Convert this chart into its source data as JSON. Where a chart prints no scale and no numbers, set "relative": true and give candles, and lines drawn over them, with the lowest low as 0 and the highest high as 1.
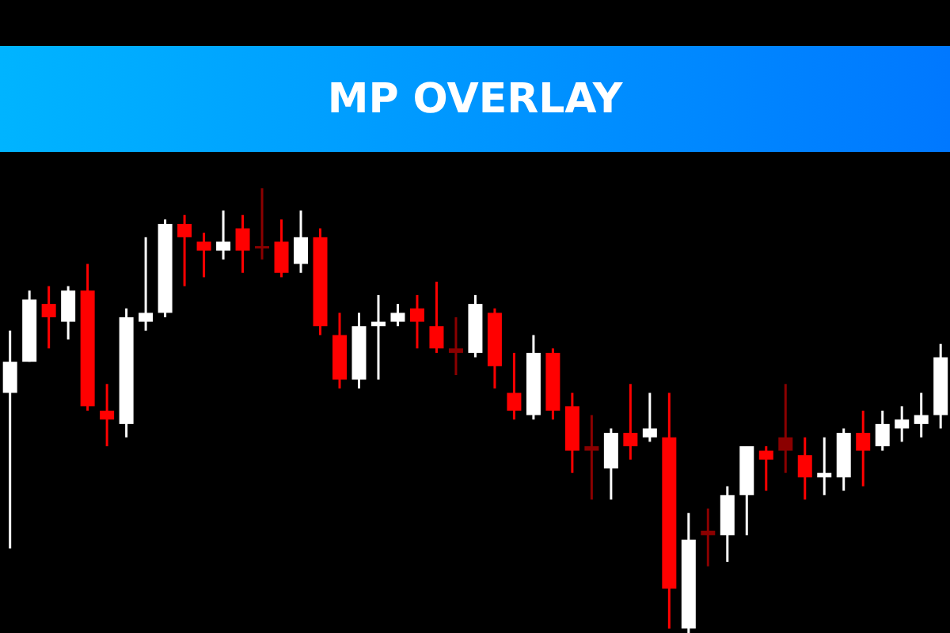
{
  "chart_data": {
    "type": "candlestick",
    "title": "MP OVERLAY",
    "relative": true,
    "categories": [
      null,
      null,
      null,
      null,
      null,
      null,
      null,
      null,
      null,
      null,
      null,
      null,
      null,
      null,
      null,
      null,
      null,
      null,
      null,
      null,
      null,
      null,
      null,
      null,
      null,
      null,
      null,
      null,
      null,
      null,
      null,
      null,
      null,
      null,
      null,
      null,
      null,
      null,
      null,
      null,
      null,
      null,
      null,
      null,
      null,
      null,
      null,
      null,
      null
    ],
    "ohlc": [
      [
        0.54,
        0.68,
        0.19,
        0.61
      ],
      [
        0.61,
        0.77,
        0.61,
        0.75
      ],
      [
        0.74,
        0.78,
        0.64,
        0.71
      ],
      [
        0.7,
        0.78,
        0.66,
        0.77
      ],
      [
        0.77,
        0.83,
        0.5,
        0.51
      ],
      [
        0.5,
        0.56,
        0.42,
        0.48
      ],
      [
        0.47,
        0.73,
        0.44,
        0.71
      ],
      [
        0.7,
        0.89,
        0.68,
        0.72
      ],
      [
        0.72,
        0.93,
        0.71,
        0.92
      ],
      [
        0.92,
        0.94,
        0.78,
        0.89
      ],
      [
        0.88,
        0.9,
        0.8,
        0.86
      ],
      [
        0.86,
        0.95,
        0.84,
        0.88
      ],
      [
        0.91,
        0.94,
        0.81,
        0.86
      ],
      [
        0.87,
        1.0,
        0.84,
        0.865
      ],
      [
        0.88,
        0.93,
        0.8,
        0.81
      ],
      [
        0.83,
        0.95,
        0.81,
        0.89
      ],
      [
        0.89,
        0.91,
        0.67,
        0.69
      ],
      [
        0.67,
        0.72,
        0.55,
        0.57
      ],
      [
        0.57,
        0.72,
        0.55,
        0.69
      ],
      [
        0.69,
        0.76,
        0.57,
        0.7
      ],
      [
        0.7,
        0.74,
        0.69,
        0.72
      ],
      [
        0.73,
        0.76,
        0.64,
        0.7
      ],
      [
        0.69,
        0.79,
        0.63,
        0.64
      ],
      [
        0.64,
        0.71,
        0.58,
        0.63
      ],
      [
        0.63,
        0.76,
        0.62,
        0.74
      ],
      [
        0.72,
        0.73,
        0.55,
        0.6
      ],
      [
        0.54,
        0.63,
        0.48,
        0.5
      ],
      [
        0.49,
        0.67,
        0.48,
        0.63
      ],
      [
        0.63,
        0.64,
        0.48,
        0.5
      ],
      [
        0.51,
        0.54,
        0.36,
        0.41
      ],
      [
        0.42,
        0.49,
        0.3,
        0.41
      ],
      [
        0.37,
        0.46,
        0.3,
        0.45
      ],
      [
        0.45,
        0.56,
        0.39,
        0.42
      ],
      [
        0.44,
        0.54,
        0.43,
        0.46
      ],
      [
        0.44,
        0.54,
        0.01,
        0.1
      ],
      [
        0.01,
        0.27,
        0.0,
        0.21
      ],
      [
        0.23,
        0.28,
        0.15,
        0.22
      ],
      [
        0.22,
        0.33,
        0.16,
        0.31
      ],
      [
        0.31,
        0.42,
        0.22,
        0.42
      ],
      [
        0.41,
        0.42,
        0.32,
        0.39
      ],
      [
        0.44,
        0.56,
        0.36,
        0.41
      ],
      [
        0.4,
        0.44,
        0.3,
        0.35
      ],
      [
        0.35,
        0.44,
        0.31,
        0.36
      ],
      [
        0.35,
        0.46,
        0.32,
        0.45
      ],
      [
        0.45,
        0.5,
        0.33,
        0.41
      ],
      [
        0.42,
        0.5,
        0.41,
        0.47
      ],
      [
        0.46,
        0.51,
        0.43,
        0.48
      ],
      [
        0.47,
        0.54,
        0.44,
        0.49
      ],
      [
        0.49,
        0.65,
        0.46,
        0.62
      ]
    ],
    "colors": [
      "#ffffff",
      "#ffffff",
      "#ff0000",
      "#ffffff",
      "#ff0000",
      "#ff0000",
      "#ffffff",
      "#ffffff",
      "#ffffff",
      "#ff0000",
      "#ff0000",
      "#ffffff",
      "#ff0000",
      "#8b0000",
      "#ff0000",
      "#ffffff",
      "#ff0000",
      "#ff0000",
      "#ffffff",
      "#ffffff",
      "#ffffff",
      "#ff0000",
      "#ff0000",
      "#8b0000",
      "#ffffff",
      "#ff0000",
      "#ff0000",
      "#ffffff",
      "#ff0000",
      "#ff0000",
      "#8b0000",
      "#ffffff",
      "#ff0000",
      "#ffffff",
      "#ff0000",
      "#ffffff",
      "#8b0000",
      "#ffffff",
      "#ffffff",
      "#ff0000",
      "#8b0000",
      "#ff0000",
      "#ffffff",
      "#ffffff",
      "#ff0000",
      "#ffffff",
      "#ffffff",
      "#ffffff",
      "#ffffff"
    ]
  }
}
